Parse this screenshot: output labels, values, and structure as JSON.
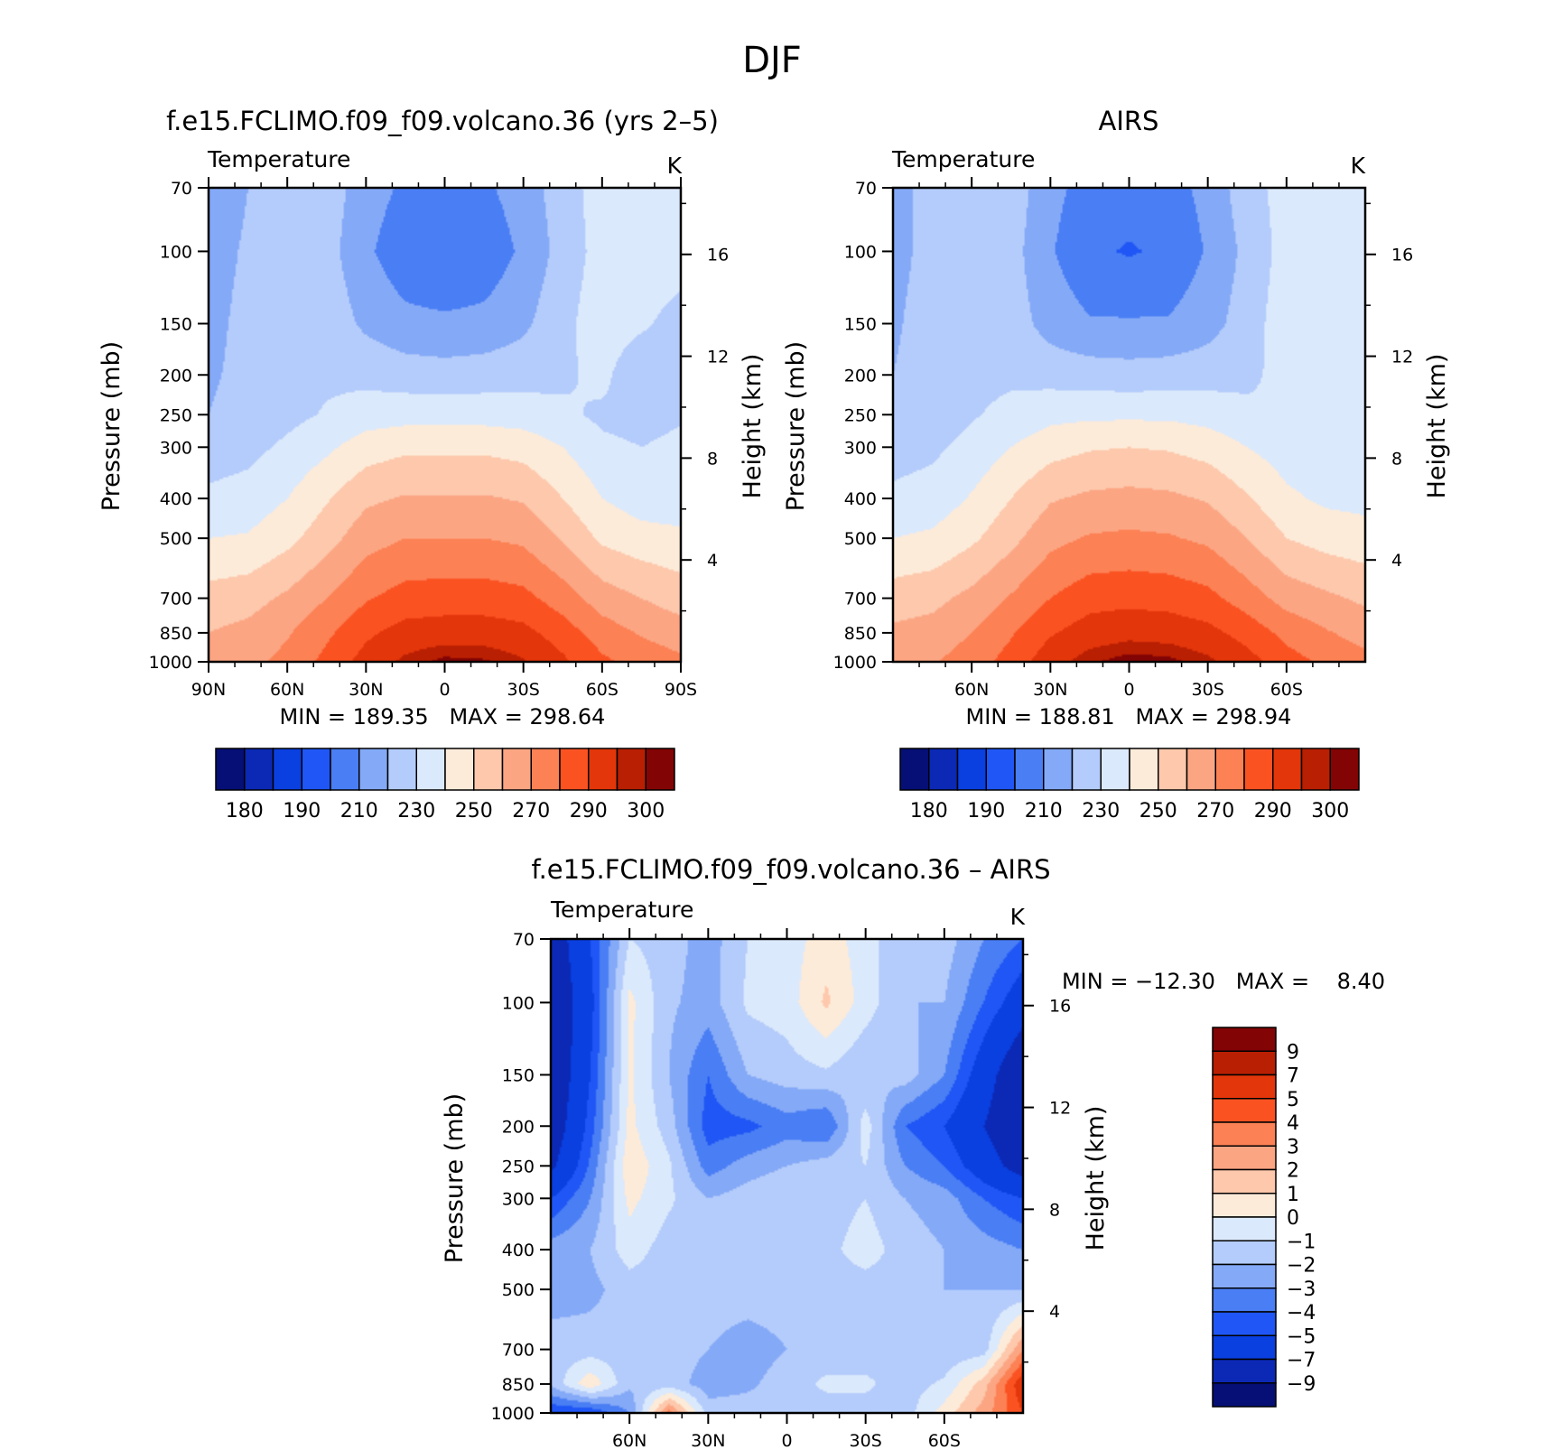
{
  "figure": {
    "title": "DJF"
  },
  "palettes": {
    "abs": [
      "#050f75",
      "#0b29b5",
      "#0a3fe0",
      "#1f56f5",
      "#4a7ef4",
      "#84a9f7",
      "#b4ccfb",
      "#dbe9fc",
      "#fdebd9",
      "#fdc8ac",
      "#fca583",
      "#fc8154",
      "#fb5222",
      "#e3360a",
      "#b91f02",
      "#820405"
    ],
    "diff": [
      "#050f75",
      "#0b29b5",
      "#0a3fe0",
      "#1f56f5",
      "#4a7ef4",
      "#84a9f7",
      "#b4ccfb",
      "#dbe9fc",
      "#fdebd9",
      "#fdc8ac",
      "#fca583",
      "#fc8154",
      "#fb5222",
      "#e3360a",
      "#b91f02",
      "#820405"
    ]
  },
  "chart_data": [
    {
      "id": "model",
      "type": "heatmap",
      "title": "f.e15.FCLIMO.f09_f09.volcano.36 (yrs 2–5)",
      "subtitle_left": "Temperature",
      "subtitle_right": "K",
      "ylabel": "Pressure (mb)",
      "y2label": "Height (km)",
      "xlim": [
        -90,
        90
      ],
      "ylim": [
        1000,
        70
      ],
      "xticks": [
        {
          "v": -90,
          "l": "90N"
        },
        {
          "v": -60,
          "l": "60N"
        },
        {
          "v": -30,
          "l": "30N"
        },
        {
          "v": 0,
          "l": "0"
        },
        {
          "v": 30,
          "l": "30S"
        },
        {
          "v": 60,
          "l": "60S"
        },
        {
          "v": 90,
          "l": "90S"
        }
      ],
      "yticks": [
        70,
        100,
        150,
        200,
        250,
        300,
        400,
        500,
        700,
        850,
        1000
      ],
      "y2ticks": [
        4,
        8,
        12,
        16
      ],
      "stats": "MIN = 189.35   MAX = 298.64",
      "x": [
        -90,
        -75,
        -60,
        -45,
        -30,
        -15,
        0,
        15,
        30,
        45,
        60,
        75,
        90
      ],
      "p": [
        70,
        100,
        150,
        200,
        250,
        300,
        400,
        500,
        700,
        850,
        1000
      ],
      "values": [
        [
          205,
          210,
          215,
          215,
          205,
          198,
          196,
          198,
          205,
          215,
          225,
          228,
          226
        ],
        [
          207,
          211,
          215,
          214,
          202,
          193,
          190,
          193,
          202,
          214,
          224,
          228,
          226
        ],
        [
          208,
          212,
          216,
          216,
          208,
          203,
          202,
          203,
          208,
          217,
          226,
          222,
          215
        ],
        [
          209,
          212,
          216,
          218,
          217,
          215,
          214,
          215,
          216,
          218,
          223,
          211,
          215
        ],
        [
          210,
          213,
          217,
          221,
          225,
          226,
          226,
          226,
          225,
          222,
          218,
          217,
          219
        ],
        [
          215,
          217,
          222,
          228,
          235,
          238,
          238,
          238,
          236,
          230,
          222,
          220,
          222
        ],
        [
          222,
          224,
          230,
          239,
          248,
          251,
          251,
          251,
          249,
          240,
          230,
          225,
          223
        ],
        [
          230,
          231,
          237,
          246,
          256,
          260,
          260,
          260,
          258,
          249,
          238,
          234,
          233
        ],
        [
          244,
          246,
          252,
          260,
          269,
          274,
          275,
          275,
          273,
          265,
          255,
          250,
          245
        ],
        [
          250,
          253,
          259,
          268,
          278,
          284,
          285,
          285,
          283,
          275,
          265,
          259,
          255
        ],
        [
          252,
          257,
          263,
          273,
          284,
          292,
          297,
          296,
          291,
          282,
          272,
          266,
          262
        ]
      ],
      "levels": [
        175,
        180,
        185,
        190,
        200,
        210,
        220,
        230,
        240,
        250,
        260,
        270,
        280,
        290,
        295
      ],
      "colorbar": {
        "orientation": "horizontal",
        "labels": [
          "180",
          "190",
          "210",
          "230",
          "250",
          "270",
          "290",
          "300"
        ]
      }
    },
    {
      "id": "obs",
      "type": "heatmap",
      "title": "AIRS",
      "subtitle_left": "Temperature",
      "subtitle_right": "K",
      "ylabel": "Pressure (mb)",
      "y2label": "Height (km)",
      "xlim": [
        -90,
        90
      ],
      "ylim": [
        1000,
        70
      ],
      "xticks": [
        {
          "v": -60,
          "l": "60N"
        },
        {
          "v": -30,
          "l": "30N"
        },
        {
          "v": 0,
          "l": "0"
        },
        {
          "v": 30,
          "l": "30S"
        },
        {
          "v": 60,
          "l": "60S"
        }
      ],
      "yticks": [
        70,
        100,
        150,
        200,
        250,
        300,
        400,
        500,
        700,
        850,
        1000
      ],
      "y2ticks": [
        4,
        8,
        12,
        16
      ],
      "stats": "MIN = 188.81   MAX = 298.94",
      "x": [
        -90,
        -75,
        -60,
        -45,
        -30,
        -15,
        0,
        15,
        30,
        45,
        60,
        75,
        90
      ],
      "p": [
        70,
        100,
        150,
        200,
        250,
        300,
        400,
        500,
        700,
        850,
        1000
      ],
      "values": [
        [
          208,
          212,
          216,
          216,
          203,
          196,
          195,
          196,
          203,
          216,
          224,
          226,
          230
        ],
        [
          208,
          212,
          216,
          214,
          201,
          192,
          189,
          192,
          201,
          213,
          224,
          226,
          227
        ],
        [
          209,
          213,
          217,
          215,
          206,
          201,
          201,
          201,
          206,
          215,
          226,
          226,
          225
        ],
        [
          210,
          213,
          217,
          218,
          216,
          215,
          214,
          215,
          216,
          218,
          223,
          223,
          223
        ],
        [
          212,
          214,
          219,
          223,
          227,
          228,
          228,
          228,
          226,
          222,
          221,
          221,
          221
        ],
        [
          216,
          218,
          223,
          230,
          236,
          239,
          240,
          239,
          236,
          230,
          225,
          224,
          224
        ],
        [
          222,
          224,
          231,
          240,
          249,
          252,
          253,
          252,
          249,
          241,
          232,
          228,
          227
        ],
        [
          230,
          232,
          238,
          247,
          257,
          261,
          262,
          261,
          258,
          250,
          240,
          236,
          234
        ],
        [
          245,
          247,
          253,
          261,
          270,
          276,
          277,
          276,
          273,
          265,
          256,
          252,
          248
        ],
        [
          252,
          254,
          260,
          269,
          279,
          285,
          287,
          286,
          283,
          276,
          267,
          261,
          256
        ],
        [
          256,
          259,
          265,
          274,
          286,
          294,
          298,
          297,
          292,
          284,
          274,
          268,
          263
        ]
      ],
      "levels": [
        175,
        180,
        185,
        190,
        200,
        210,
        220,
        230,
        240,
        250,
        260,
        270,
        280,
        290,
        295
      ],
      "colorbar": {
        "orientation": "horizontal",
        "labels": [
          "180",
          "190",
          "210",
          "230",
          "250",
          "270",
          "290",
          "300"
        ]
      }
    },
    {
      "id": "diff",
      "type": "heatmap",
      "title": "f.e15.FCLIMO.f09_f09.volcano.36 – AIRS",
      "subtitle_left": "Temperature",
      "subtitle_right": "K",
      "ylabel": "Pressure (mb)",
      "y2label": "Height (km)",
      "xlim": [
        -90,
        90
      ],
      "ylim": [
        1000,
        70
      ],
      "xticks": [
        {
          "v": -60,
          "l": "60N"
        },
        {
          "v": -30,
          "l": "30N"
        },
        {
          "v": 0,
          "l": "0"
        },
        {
          "v": 30,
          "l": "30S"
        },
        {
          "v": 60,
          "l": "60S"
        }
      ],
      "yticks": [
        70,
        100,
        150,
        200,
        250,
        300,
        400,
        500,
        700,
        850,
        1000
      ],
      "y2ticks": [
        4,
        8,
        12,
        16
      ],
      "stats": "MIN = −12.30   MAX =    8.40",
      "x": [
        -90,
        -75,
        -60,
        -45,
        -30,
        -15,
        0,
        15,
        30,
        45,
        60,
        75,
        90
      ],
      "p": [
        70,
        100,
        150,
        200,
        250,
        300,
        400,
        500,
        700,
        850,
        1000
      ],
      "values": [
        [
          -8.5,
          -5,
          -1,
          -1.5,
          -2.5,
          -1,
          -0.5,
          0.5,
          -0.5,
          -2,
          -1.5,
          -3,
          -4
        ],
        [
          -9,
          -5.5,
          0.3,
          -1.8,
          -2.5,
          -0.8,
          -0.5,
          1.2,
          -0.5,
          -2,
          -2,
          -4,
          -6
        ],
        [
          -9,
          -5,
          0.2,
          -2,
          -4,
          -2,
          -1.5,
          -1.2,
          -2,
          -1.5,
          -3,
          -6,
          -9
        ],
        [
          -8.5,
          -4.5,
          0.3,
          -1.5,
          -4.5,
          -4.3,
          -3.5,
          -4,
          -0.5,
          -4,
          -5,
          -7,
          -9
        ],
        [
          -7.5,
          -3.8,
          0.8,
          -0.8,
          -3.5,
          -2.5,
          -2,
          -1.5,
          -1,
          -3,
          -4,
          -6,
          -8
        ],
        [
          -5,
          -3,
          0.3,
          -0.8,
          -2,
          -1.5,
          -1,
          -1.5,
          -1,
          -2,
          -2.5,
          -4,
          -5
        ],
        [
          -2.5,
          -2,
          -0.5,
          -1.5,
          -1.5,
          -1.5,
          -1.5,
          -1.3,
          -0.5,
          -1.5,
          -2,
          -2.5,
          -3
        ],
        [
          -2.5,
          -2.3,
          -1.5,
          -1.5,
          -1.5,
          -1.5,
          -1.5,
          -1.5,
          -1.5,
          -1.5,
          -2,
          -2,
          -2
        ],
        [
          -1.5,
          -1.5,
          -1.5,
          -1.5,
          -2,
          -2.5,
          -2,
          -1.5,
          -1.5,
          -1.5,
          -1.8,
          -1.5,
          3
        ],
        [
          -1.8,
          0.8,
          -1.8,
          -1.5,
          -2.5,
          -2.2,
          -1.5,
          -0.8,
          -0.8,
          -1.5,
          -0.8,
          1.5,
          6
        ],
        [
          -5,
          -5,
          -3,
          3.5,
          -1.5,
          -1.5,
          -1.5,
          -1.5,
          -1.5,
          -1.5,
          0.5,
          2.5,
          5
        ]
      ],
      "levels": [
        -9,
        -7,
        -5,
        -4,
        -3,
        -2,
        -1,
        0,
        1,
        2,
        3,
        4,
        5,
        7,
        9
      ],
      "colorbar": {
        "orientation": "vertical",
        "labels": [
          "9",
          "7",
          "5",
          "4",
          "3",
          "2",
          "1",
          "0",
          "−1",
          "−2",
          "−3",
          "−4",
          "−5",
          "−7",
          "−9"
        ]
      }
    }
  ]
}
